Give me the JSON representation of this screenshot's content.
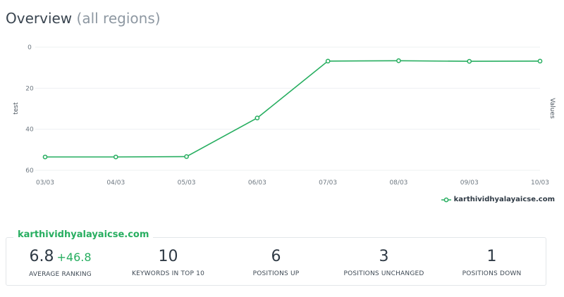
{
  "header": {
    "title": "Overview",
    "scope": "(all regions)"
  },
  "chart_data": {
    "type": "line",
    "x": [
      "03/03",
      "04/03",
      "05/03",
      "06/03",
      "07/03",
      "08/03",
      "09/03",
      "10/03"
    ],
    "series": [
      {
        "name": "karthividhyalayaicse.com",
        "values": [
          53.5,
          53.5,
          53.3,
          34.5,
          6.8,
          6.6,
          6.9,
          6.8
        ]
      }
    ],
    "ylabel": "test",
    "y2label": "Values",
    "ylim": [
      0,
      60
    ],
    "y_reversed": true,
    "yticks": [
      0,
      20,
      40,
      60
    ],
    "grid": true,
    "legend_position": "bottom-right",
    "color": "#27ae60"
  },
  "summary": {
    "domain": "karthividhyalayaicse.com",
    "stats": [
      {
        "value": "6.8",
        "delta": "+46.8",
        "label": "AVERAGE RANKING"
      },
      {
        "value": "10",
        "label": "KEYWORDS IN TOP 10"
      },
      {
        "value": "6",
        "label": "POSITIONS UP"
      },
      {
        "value": "3",
        "label": "POSITIONS UNCHANGED"
      },
      {
        "value": "1",
        "label": "POSITIONS DOWN"
      }
    ]
  }
}
